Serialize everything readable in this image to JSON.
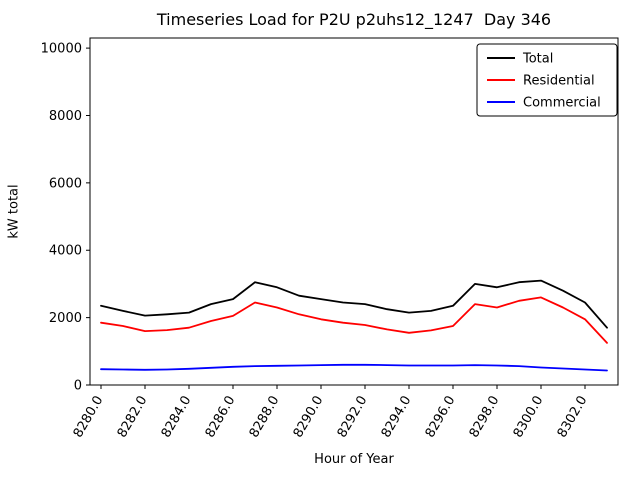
{
  "title": "Timeseries Load for P2U p2uhs12_1247  Day 346",
  "xlabel": "Hour of Year",
  "ylabel": "kW total",
  "chart_data": {
    "type": "line",
    "title": "Timeseries Load for P2U p2uhs12_1247  Day 346",
    "xlabel": "Hour of Year",
    "ylabel": "kW total",
    "grid": false,
    "legend_position": "upper right",
    "xlim": [
      8279.5,
      8303.5
    ],
    "ylim": [
      0,
      10300
    ],
    "yticks": [
      0,
      2000,
      4000,
      6000,
      8000,
      10000
    ],
    "ytick_labels": [
      "0",
      "2000",
      "4000",
      "6000",
      "8000",
      "10000"
    ],
    "xticks": [
      8280,
      8282,
      8284,
      8286,
      8288,
      8290,
      8292,
      8294,
      8296,
      8298,
      8300,
      8302
    ],
    "xtick_labels": [
      "8280.0",
      "8282.0",
      "8284.0",
      "8286.0",
      "8288.0",
      "8290.0",
      "8292.0",
      "8294.0",
      "8296.0",
      "8298.0",
      "8300.0",
      "8302.0"
    ],
    "x": [
      8280,
      8281,
      8282,
      8283,
      8284,
      8285,
      8286,
      8287,
      8288,
      8289,
      8290,
      8291,
      8292,
      8293,
      8294,
      8295,
      8296,
      8297,
      8298,
      8299,
      8300,
      8301,
      8302,
      8303
    ],
    "series": [
      {
        "name": "Total",
        "color": "#000000",
        "values": [
          2350,
          2200,
          2060,
          2100,
          2150,
          2400,
          2550,
          3050,
          2900,
          2650,
          2550,
          2450,
          2400,
          2250,
          2150,
          2200,
          2350,
          3000,
          2900,
          3050,
          3100,
          2800,
          2450,
          1700
        ]
      },
      {
        "name": "Residential",
        "color": "#ff0000",
        "values": [
          1850,
          1750,
          1600,
          1630,
          1700,
          1900,
          2050,
          2450,
          2300,
          2100,
          1950,
          1850,
          1780,
          1650,
          1550,
          1620,
          1750,
          2400,
          2300,
          2500,
          2600,
          2300,
          1950,
          1250
        ]
      },
      {
        "name": "Commercial",
        "color": "#0000ff",
        "values": [
          470,
          460,
          450,
          460,
          480,
          510,
          540,
          560,
          570,
          580,
          590,
          600,
          600,
          590,
          580,
          580,
          580,
          590,
          580,
          560,
          520,
          490,
          460,
          430
        ]
      }
    ]
  },
  "legend": {
    "entries": [
      "Total",
      "Residential",
      "Commercial"
    ]
  }
}
